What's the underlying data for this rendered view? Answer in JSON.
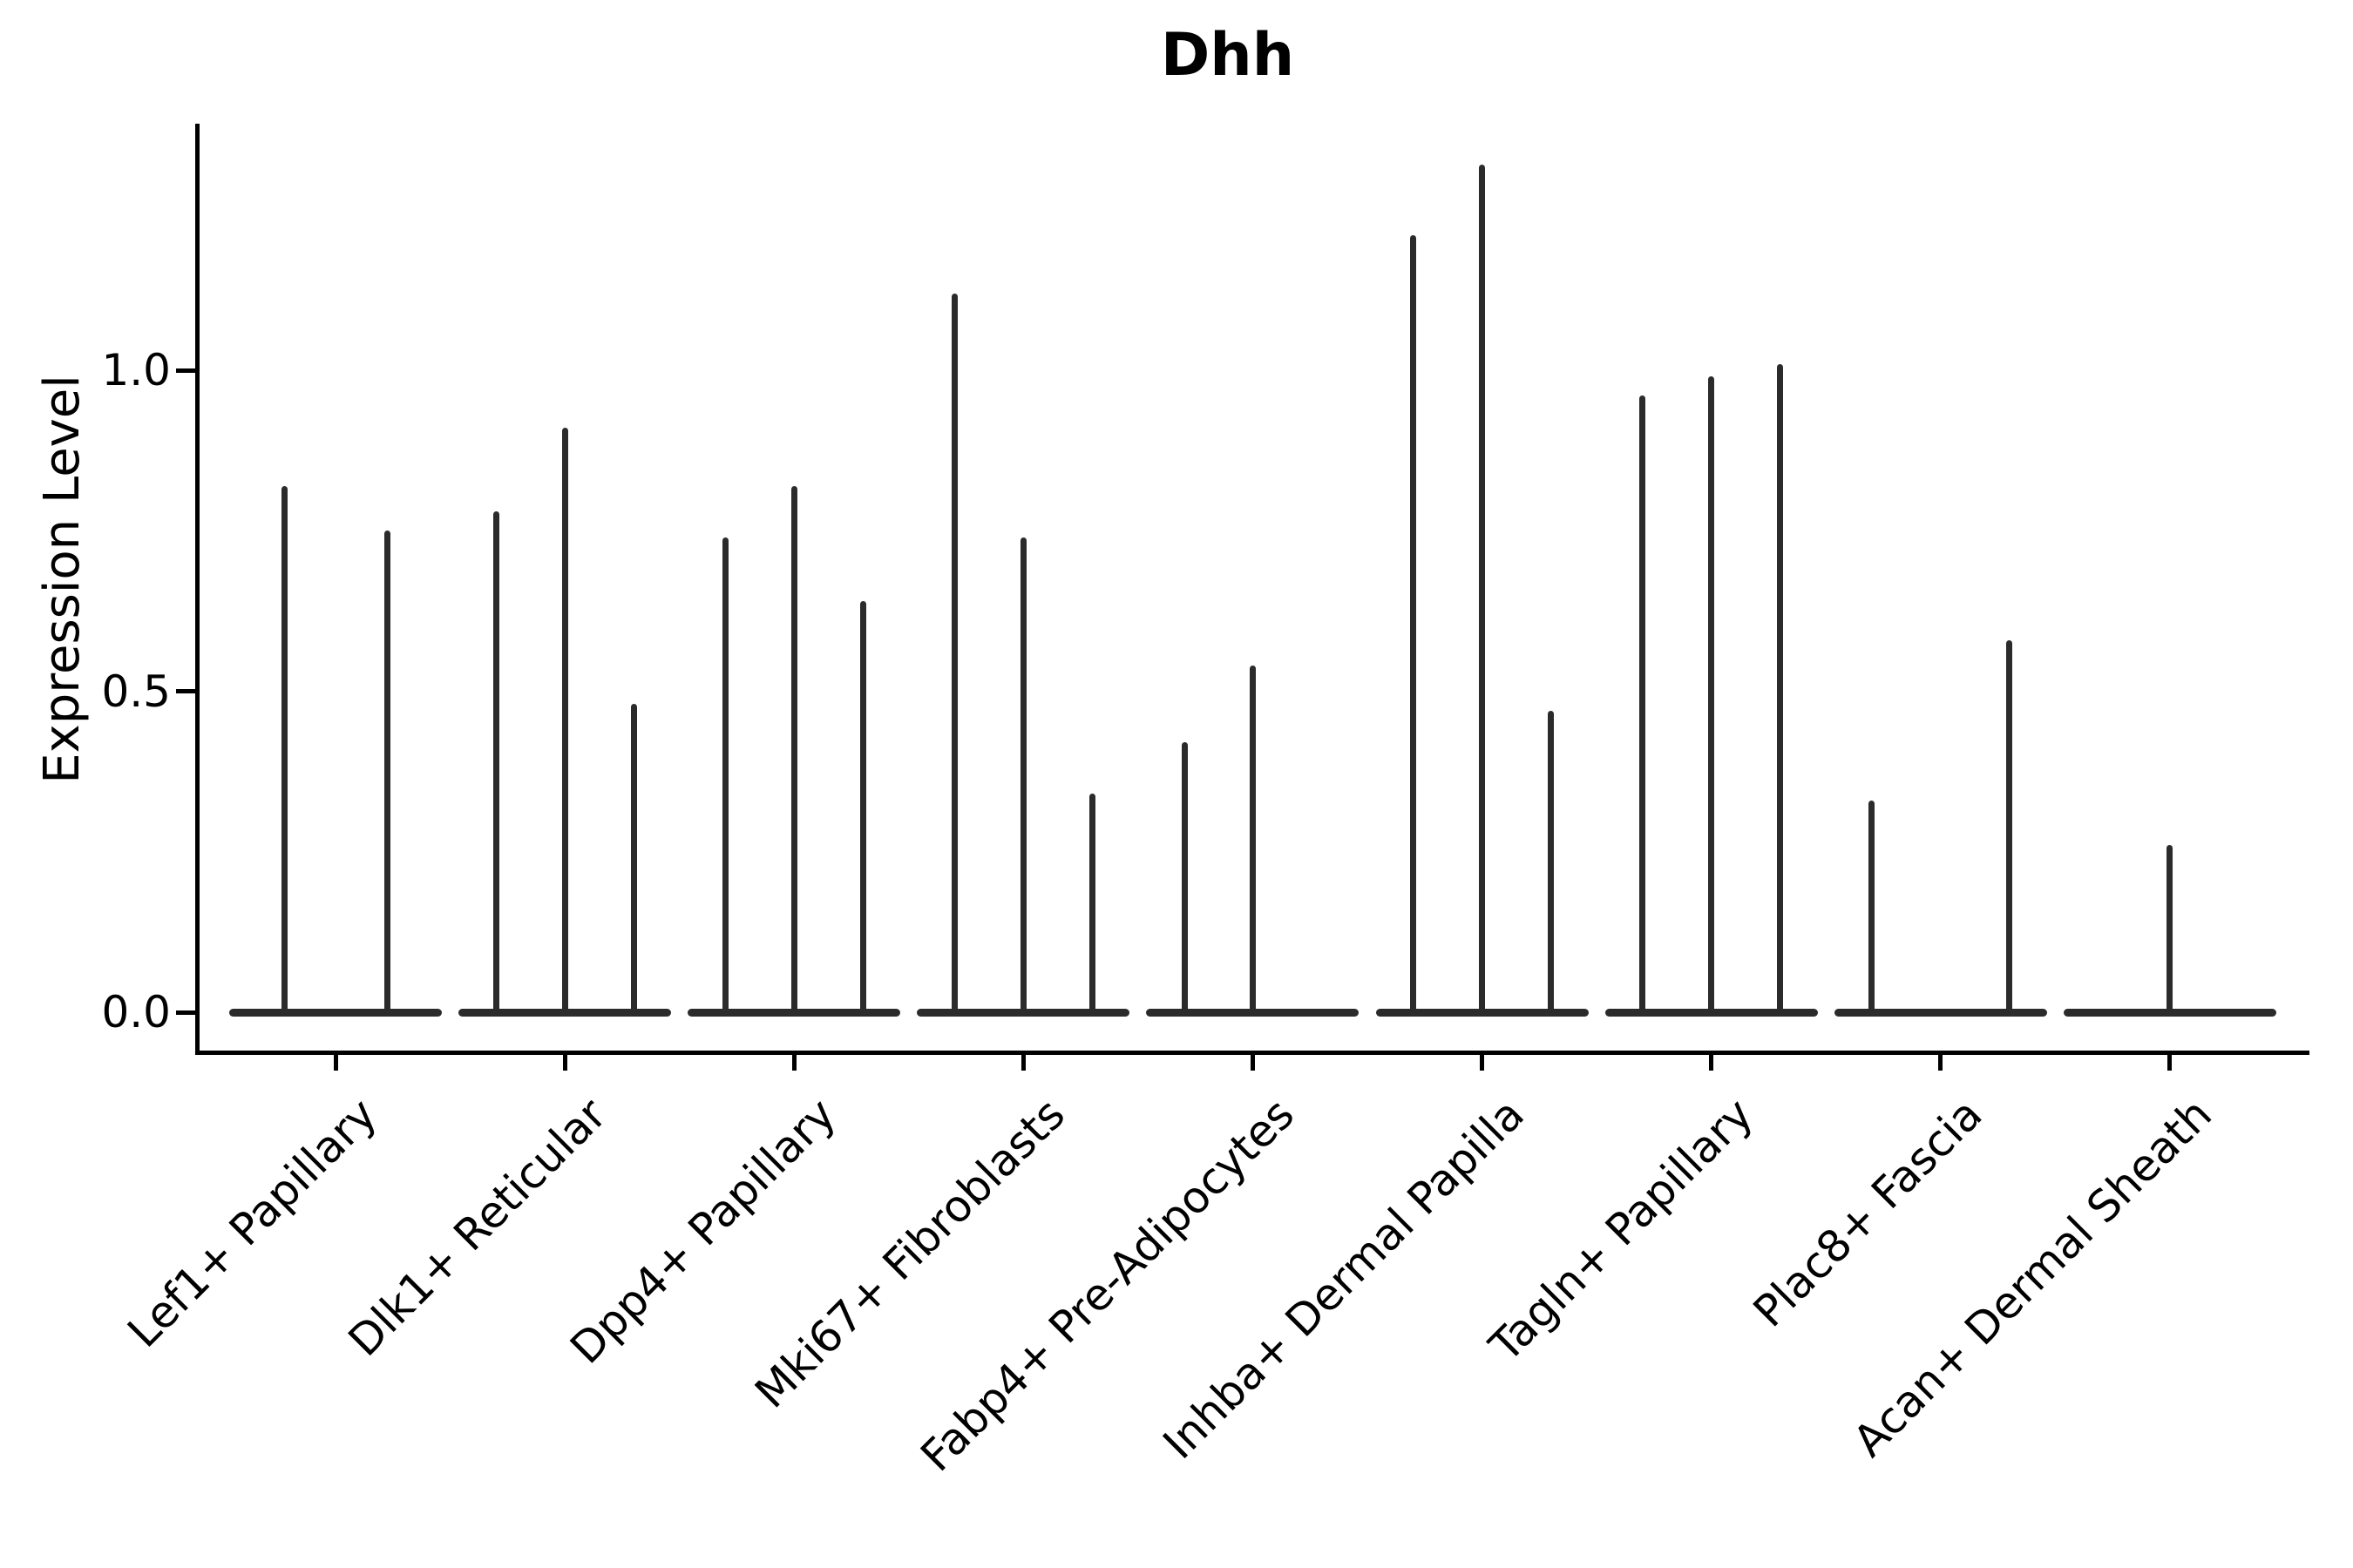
{
  "chart_data": {
    "type": "violin",
    "title": "Dhh",
    "xlabel": "",
    "ylabel": "Expression Level",
    "ylim": [
      0,
      1.38
    ],
    "grid": false,
    "legend": "none",
    "yticks": [
      "0.0",
      "0.5",
      "1.0"
    ],
    "ytick_values": [
      0.0,
      0.5,
      1.0
    ],
    "categories": [
      "Lef1+ Papillary",
      "Dlk1+ Reticular",
      "Dpp4+ Papillary",
      "Mki67+ Fibroblasts",
      "Fabp4+ Pre-Adipocytes",
      "Inhba+ Dermal Papilla",
      "Tagln+ Papillary",
      "Plac8+ Fascia",
      "Acan+ Dermal Sheath"
    ],
    "groups": [
      {
        "category": "Lef1+ Papillary",
        "violins": [
          {
            "offset": -59,
            "max": 0.82
          },
          {
            "offset": 59,
            "max": 0.75
          }
        ]
      },
      {
        "category": "Dlk1+ Reticular",
        "violins": [
          {
            "offset": -79,
            "max": 0.78
          },
          {
            "offset": 0,
            "max": 0.91
          },
          {
            "offset": 79,
            "max": 0.48
          }
        ]
      },
      {
        "category": "Dpp4+ Papillary",
        "violins": [
          {
            "offset": -79,
            "max": 0.74
          },
          {
            "offset": 0,
            "max": 0.82
          },
          {
            "offset": 79,
            "max": 0.64
          }
        ]
      },
      {
        "category": "Mki67+ Fibroblasts",
        "violins": [
          {
            "offset": -79,
            "max": 1.12
          },
          {
            "offset": 0,
            "max": 0.74
          },
          {
            "offset": 79,
            "max": 0.34
          }
        ]
      },
      {
        "category": "Fabp4+ Pre-Adipocytes",
        "violins": [
          {
            "offset": -78,
            "max": 0.42
          },
          {
            "offset": 0,
            "max": 0.54
          }
        ]
      },
      {
        "category": "Inhba+ Dermal Papilla",
        "violins": [
          {
            "offset": -79,
            "max": 1.21
          },
          {
            "offset": 0,
            "max": 1.32
          },
          {
            "offset": 79,
            "max": 0.47
          }
        ]
      },
      {
        "category": "Tagln+ Papillary",
        "violins": [
          {
            "offset": -79,
            "max": 0.96
          },
          {
            "offset": 0,
            "max": 0.99
          },
          {
            "offset": 79,
            "max": 1.01
          }
        ]
      },
      {
        "category": "Plac8+ Fascia",
        "violins": [
          {
            "offset": -79,
            "max": 0.33
          },
          {
            "offset": 79,
            "max": 0.58
          }
        ]
      },
      {
        "category": "Acan+ Dermal Sheath",
        "violins": [
          {
            "offset": 0,
            "max": 0.26
          }
        ]
      }
    ],
    "colors": {
      "violin": "#2b2b2b",
      "axis": "#000000",
      "text": "#000000",
      "background": "#ffffff"
    }
  }
}
